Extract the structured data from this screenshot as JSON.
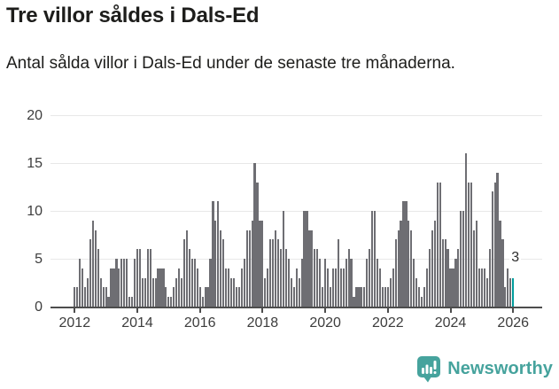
{
  "header": {
    "title": "Tre villor såldes i Dals-Ed",
    "subtitle": "Antal sålda villor i Dals-Ed under de senaste tre månaderna."
  },
  "chart_data": {
    "type": "bar",
    "title": "Tre villor såldes i Dals-Ed",
    "x_unit": "month",
    "x_start": "2012-01",
    "x_end": "2026-01",
    "ylim": [
      0,
      20
    ],
    "y_ticks": [
      0,
      5,
      10,
      15,
      20
    ],
    "x_tick_labels": [
      "2012",
      "2014",
      "2016",
      "2018",
      "2020",
      "2022",
      "2024",
      "2026"
    ],
    "grid": "horizontal",
    "bar_color": "#6e6e73",
    "highlight_color": "#009c9c",
    "highlight_index": 168,
    "last_value_label": "3",
    "values": [
      2,
      2,
      5,
      4,
      2,
      3,
      7,
      9,
      8,
      6,
      3,
      2,
      2,
      1,
      4,
      4,
      5,
      4,
      5,
      5,
      5,
      1,
      1,
      5,
      6,
      6,
      3,
      3,
      6,
      6,
      3,
      3,
      4,
      4,
      4,
      2,
      1,
      1,
      2,
      3,
      4,
      3,
      7,
      8,
      6,
      5,
      5,
      4,
      2,
      1,
      2,
      2,
      5,
      11,
      9,
      11,
      8,
      7,
      4,
      4,
      3,
      3,
      2,
      2,
      4,
      5,
      8,
      8,
      9,
      15,
      13,
      9,
      9,
      3,
      4,
      7,
      7,
      8,
      7,
      6,
      10,
      6,
      5,
      3,
      2,
      4,
      3,
      5,
      10,
      10,
      8,
      8,
      6,
      6,
      5,
      2,
      5,
      4,
      2,
      4,
      4,
      7,
      4,
      4,
      5,
      6,
      5,
      1,
      2,
      2,
      2,
      2,
      5,
      6,
      10,
      10,
      5,
      4,
      2,
      2,
      2,
      3,
      4,
      7,
      8,
      9,
      11,
      11,
      9,
      8,
      5,
      3,
      2,
      1,
      2,
      4,
      6,
      8,
      9,
      13,
      13,
      7,
      7,
      6,
      4,
      4,
      5,
      6,
      10,
      10,
      16,
      13,
      13,
      8,
      9,
      4,
      4,
      4,
      3,
      6,
      12,
      13,
      14,
      9,
      7,
      2,
      4,
      3,
      3
    ]
  },
  "footer": {
    "brand": "Newsworthy",
    "logo_icon": "newsworthy-speech-bubble-chart-icon",
    "brand_color": "#46a39d"
  }
}
